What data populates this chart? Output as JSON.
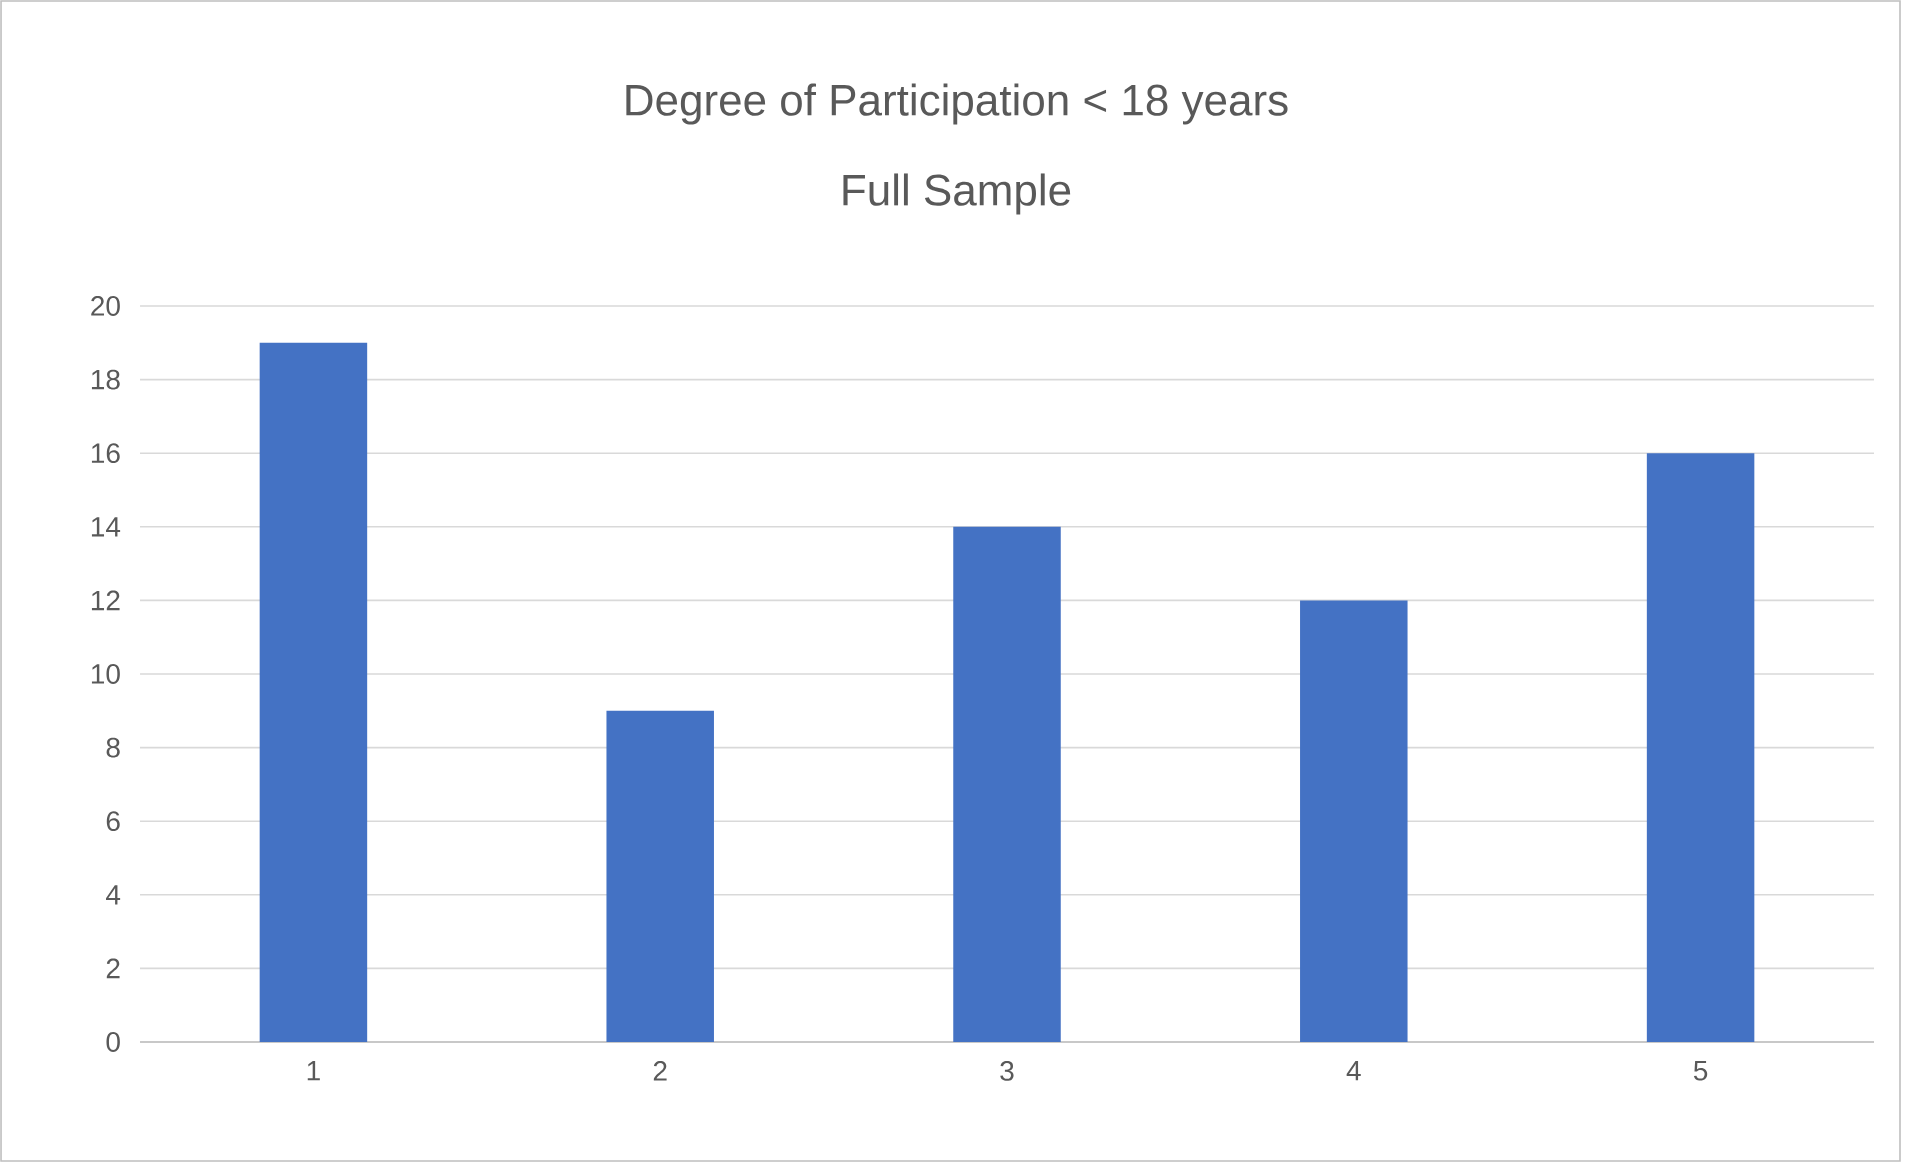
{
  "chart_data": {
    "type": "bar",
    "title": "Degree of Participation < 18 years",
    "subtitle": "Full Sample",
    "categories": [
      "1",
      "2",
      "3",
      "4",
      "5"
    ],
    "values": [
      19,
      9,
      14,
      12,
      16
    ],
    "color": "#4472c4",
    "ylim": [
      0,
      20
    ],
    "yticks": [
      0,
      2,
      4,
      6,
      8,
      10,
      12,
      14,
      16,
      18,
      20
    ],
    "grid": "y"
  }
}
